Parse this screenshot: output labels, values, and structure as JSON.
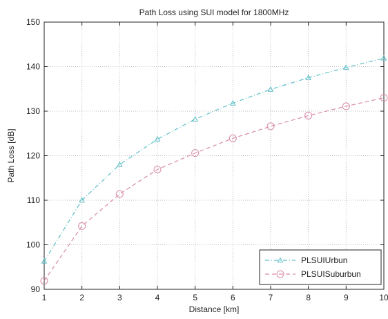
{
  "chart_data": {
    "type": "line",
    "title": "Path Loss using SUI model for 1800MHz",
    "xlabel": "Distance [km]",
    "ylabel": "Path Loss [dB]",
    "x": [
      1,
      2,
      3,
      4,
      5,
      6,
      7,
      8,
      9,
      10
    ],
    "xlim": [
      1,
      10
    ],
    "ylim": [
      90,
      150
    ],
    "xticks": [
      1,
      2,
      3,
      4,
      5,
      6,
      7,
      8,
      9,
      10
    ],
    "yticks": [
      90,
      100,
      110,
      120,
      130,
      140,
      150
    ],
    "grid": true,
    "legend_position": "bottom-right",
    "series": [
      {
        "name": "PLSUIUrbun",
        "values": [
          96.3,
          110.0,
          118.0,
          123.7,
          128.2,
          131.8,
          134.9,
          137.5,
          139.8,
          141.9
        ],
        "color": "#5bbfc6",
        "marker": "triangle",
        "line_style": "dash-dot"
      },
      {
        "name": "PLSUISuburbun",
        "values": [
          91.9,
          104.2,
          111.4,
          116.9,
          120.6,
          123.9,
          126.6,
          129.0,
          131.1,
          133.0
        ],
        "color": "#d98aa8",
        "marker": "circle",
        "line_style": "dashed"
      }
    ]
  }
}
